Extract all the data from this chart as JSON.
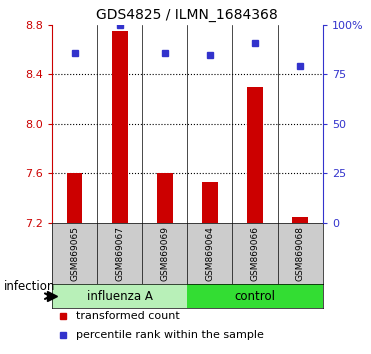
{
  "title": "GDS4825 / ILMN_1684368",
  "samples": [
    "GSM869065",
    "GSM869067",
    "GSM869069",
    "GSM869064",
    "GSM869066",
    "GSM869068"
  ],
  "groups": [
    "influenza A",
    "influenza A",
    "influenza A",
    "control",
    "control",
    "control"
  ],
  "bar_values": [
    7.6,
    8.75,
    7.6,
    7.53,
    8.3,
    7.25
  ],
  "percentile_values": [
    86,
    100,
    86,
    85,
    91,
    79
  ],
  "ylim_left": [
    7.2,
    8.8
  ],
  "ylim_right": [
    0,
    100
  ],
  "yticks_left": [
    7.2,
    7.6,
    8.0,
    8.4,
    8.8
  ],
  "yticks_right": [
    0,
    25,
    50,
    75,
    100
  ],
  "bar_color": "#cc0000",
  "square_color": "#3333cc",
  "influenza_color": "#b8f0b8",
  "control_color": "#33dd33",
  "label_bg": "#cccccc",
  "plot_bg": "#ffffff",
  "group_label": "infection",
  "legend_bar": "transformed count",
  "legend_sq": "percentile rank within the sample",
  "bar_bottom": 7.2,
  "bar_width": 0.35,
  "title_fontsize": 10,
  "tick_fontsize": 8,
  "sample_fontsize": 6.5,
  "group_fontsize": 8.5,
  "legend_fontsize": 8
}
